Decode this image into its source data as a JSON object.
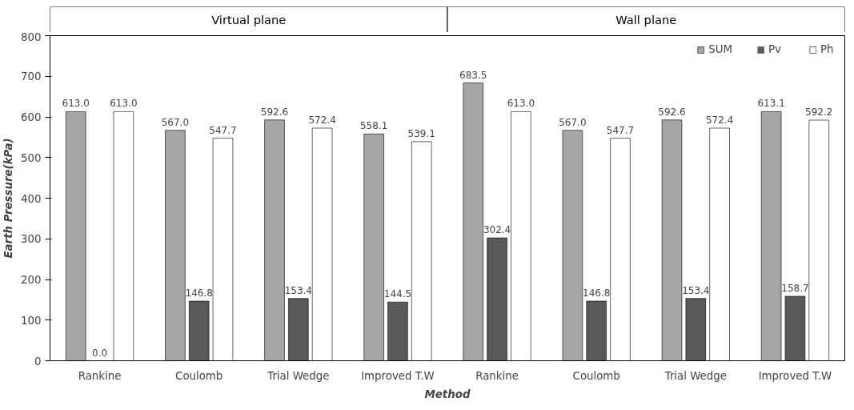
{
  "chart_data": {
    "type": "bar",
    "xlabel": "Method",
    "ylabel": "Earth Pressure(kPa)",
    "categories": [
      "Rankine",
      "Coulomb",
      "Trial Wedge",
      "Improved T.W",
      "Rankine",
      "Coulomb",
      "Trial Wedge",
      "Improved T.W"
    ],
    "annotations": [
      "Virtual plane",
      "Wall plane"
    ],
    "series": [
      {
        "name": "SUM",
        "color": "#a6a6a6",
        "values": [
          613.0,
          567.0,
          592.6,
          558.1,
          683.5,
          567.0,
          592.6,
          613.1
        ],
        "value_labels": [
          "613.0",
          "567.0",
          "592.6",
          "558.1",
          "683.5",
          "567.0",
          "592.6",
          "613.1"
        ]
      },
      {
        "name": "Pv",
        "color": "#595959",
        "values": [
          0.0,
          146.8,
          153.4,
          144.5,
          302.4,
          146.8,
          153.4,
          158.7
        ],
        "value_labels": [
          "0.0",
          "146.8",
          "153.4",
          "144.5",
          "302.4",
          "146.8",
          "153.4",
          "158.7"
        ]
      },
      {
        "name": "Ph",
        "color": "#ffffff",
        "values": [
          613.0,
          547.7,
          572.4,
          539.1,
          613.0,
          547.7,
          572.4,
          592.2
        ],
        "value_labels": [
          "613.0",
          "547.7",
          "572.4",
          "539.1",
          "613.0",
          "547.7",
          "572.4",
          "592.2"
        ]
      }
    ],
    "ylim": [
      0,
      800
    ],
    "yticks": [
      0,
      100,
      200,
      300,
      400,
      500,
      600,
      700,
      800
    ],
    "grid": false,
    "legend": "top right"
  }
}
